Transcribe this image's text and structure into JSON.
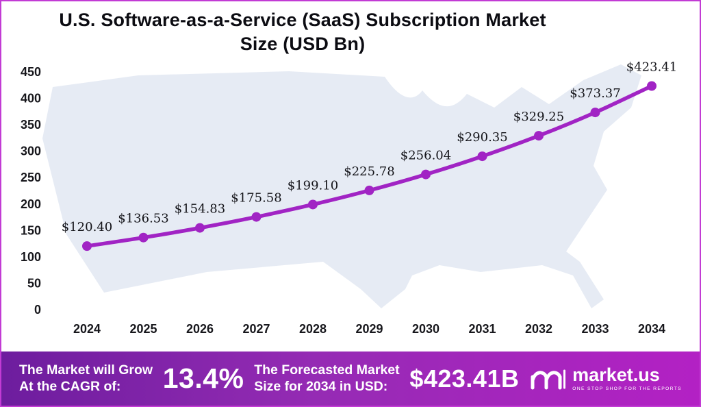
{
  "title": {
    "line1": "U.S. Software-as-a-Service (SaaS) Subscription Market",
    "line2": "Size (USD Bn)"
  },
  "chart_data": {
    "type": "line",
    "title": "U.S. Software-as-a-Service (SaaS) Subscription Market Size (USD Bn)",
    "categories": [
      "2024",
      "2025",
      "2026",
      "2027",
      "2028",
      "2029",
      "2030",
      "2031",
      "2032",
      "2033",
      "2034"
    ],
    "values": [
      120.4,
      136.53,
      154.83,
      175.58,
      199.1,
      225.78,
      256.04,
      290.35,
      329.25,
      373.37,
      423.41
    ],
    "labels": [
      "$120.40",
      "$136.53",
      "$154.83",
      "$175.58",
      "$199.10",
      "$225.78",
      "$256.04",
      "$290.35",
      "$329.25",
      "$373.37",
      "$423.41"
    ],
    "ylim": [
      0,
      450
    ],
    "yticks": [
      0,
      50,
      100,
      150,
      200,
      250,
      300,
      350,
      400,
      450
    ],
    "xlabel": "",
    "ylabel": "",
    "grid": false,
    "legend": "none",
    "line_color": "#a124c4",
    "marker_color": "#a124c4",
    "map_color": "#e2e8f2"
  },
  "footer": {
    "cagr_label_line1": "The Market will Grow",
    "cagr_label_line2": "At the CAGR of:",
    "cagr_value": "13.4%",
    "forecast_label_line1": "The Forecasted Market",
    "forecast_label_line2": "Size for 2034 in USD:",
    "forecast_value": "$423.41B",
    "brand": "market.us",
    "brand_tagline": "ONE STOP SHOP FOR THE REPORTS"
  }
}
